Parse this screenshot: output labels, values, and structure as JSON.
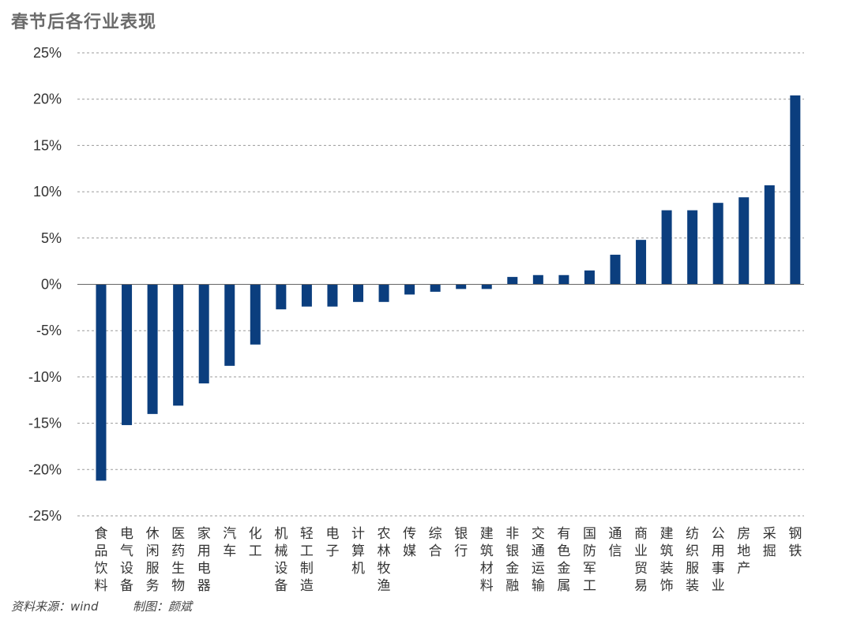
{
  "header": {
    "title": "春节后各行业表现"
  },
  "footer": {
    "source": "资料来源：wind",
    "credit": "制图：颜斌"
  },
  "colors": {
    "bar": "#0b3e7e",
    "grid": "#9a9a9a",
    "axis": "#666666"
  },
  "chart_data": {
    "type": "bar",
    "title": "春节后各行业表现",
    "xlabel": "",
    "ylabel": "",
    "ylim": [
      -25,
      25
    ],
    "yticks": [
      25,
      20,
      15,
      10,
      5,
      0,
      -5,
      -10,
      -15,
      -20,
      -25
    ],
    "ytick_labels": [
      "25%",
      "20%",
      "15%",
      "10%",
      "5%",
      "0%",
      "-5%",
      "-10%",
      "-15%",
      "-20%",
      "-25%"
    ],
    "grid": true,
    "categories": [
      "食品饮料",
      "电气设备",
      "休闲服务",
      "医药生物",
      "家用电器",
      "汽车",
      "化工",
      "机械设备",
      "轻工制造",
      "电子",
      "计算机",
      "农林牧渔",
      "传媒",
      "综合",
      "银行",
      "建筑材料",
      "非银金融",
      "交通运输",
      "有色金属",
      "国防军工",
      "通信",
      "商业贸易",
      "建筑装饰",
      "纺织服装",
      "公用事业",
      "房地产",
      "采掘",
      "钢铁"
    ],
    "values": [
      -21.2,
      -15.2,
      -14.0,
      -13.1,
      -10.7,
      -8.8,
      -6.5,
      -2.7,
      -2.4,
      -2.4,
      -1.9,
      -1.9,
      -1.1,
      -0.8,
      -0.5,
      -0.5,
      0.8,
      1.0,
      1.0,
      1.5,
      3.2,
      4.8,
      8.0,
      8.0,
      8.8,
      9.4,
      10.7,
      20.4
    ]
  }
}
